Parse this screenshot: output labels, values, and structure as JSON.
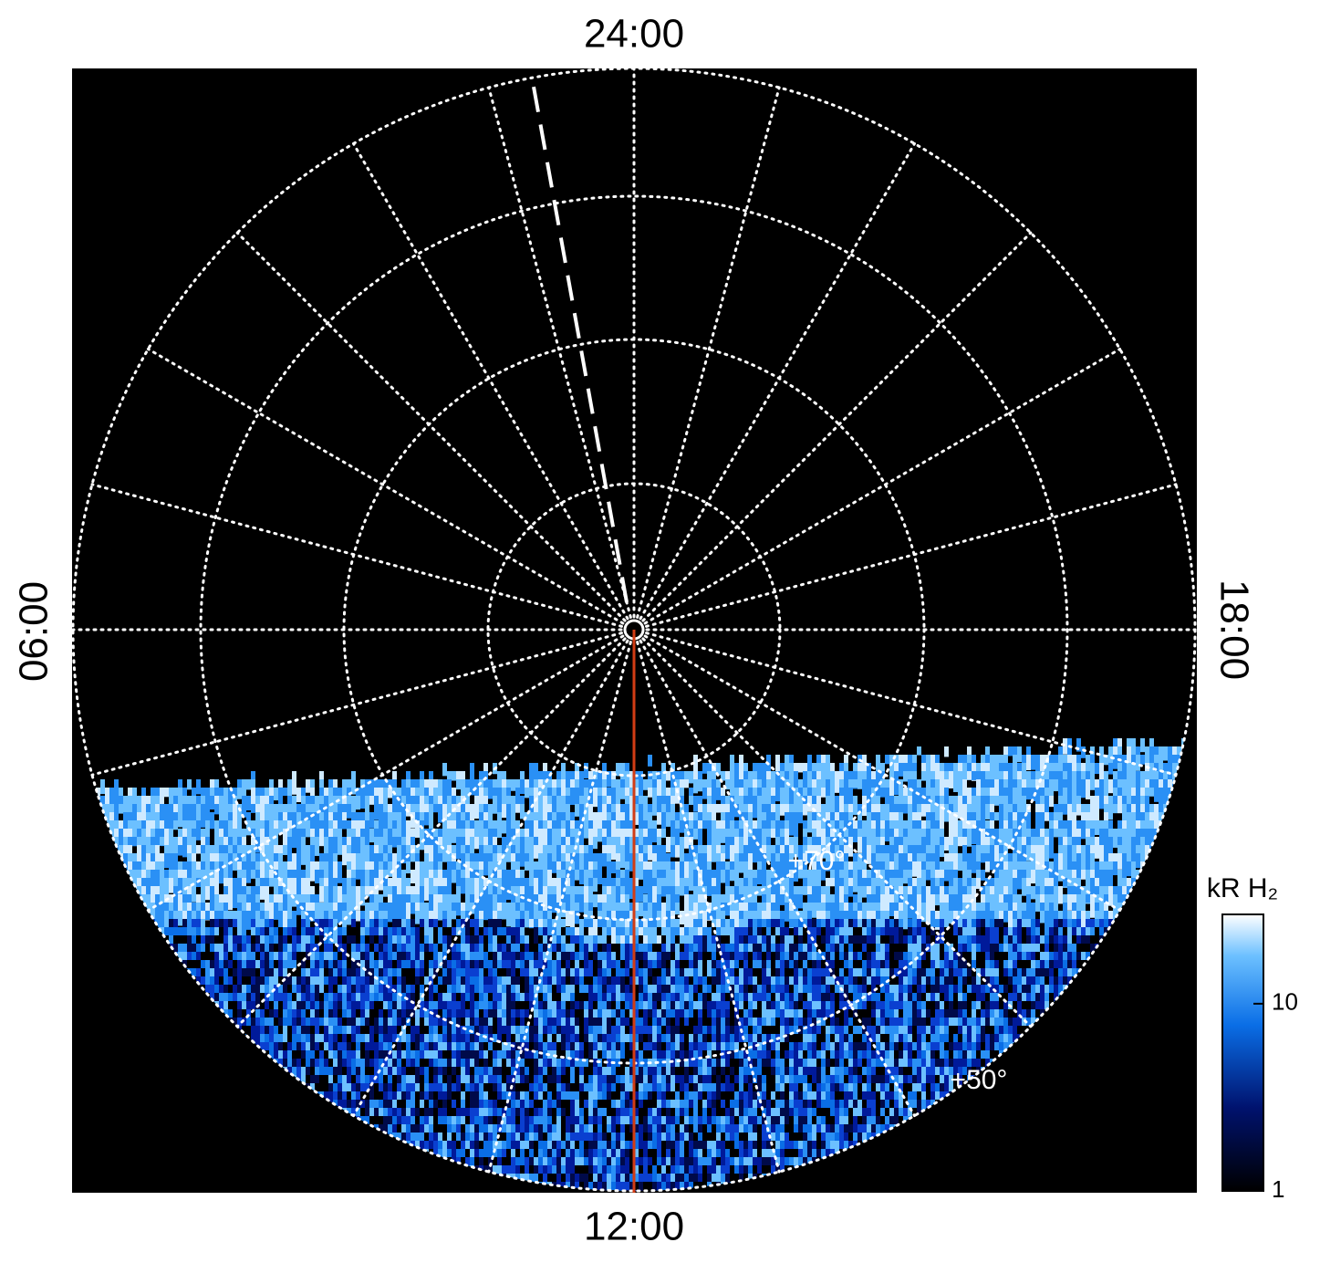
{
  "chart_data": {
    "type": "polar",
    "local_time_labels": {
      "top": "24:00",
      "bottom": "12:00",
      "left": "06:00",
      "right": "18:00"
    },
    "latitude_labels": [
      "+70°",
      "+50°"
    ],
    "colorbar": {
      "label": "kR H₂",
      "scale": "log",
      "lim": [
        1,
        30
      ],
      "ticks": [
        1,
        10
      ]
    }
  }
}
